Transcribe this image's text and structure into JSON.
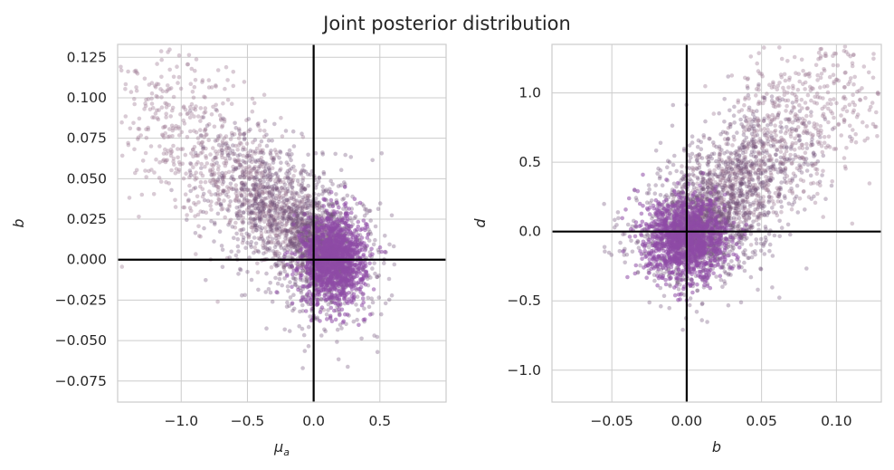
{
  "figure": {
    "title": "Joint posterior distribution",
    "colors": {
      "scatter_light": "#a07c95",
      "scatter_mid": "#6f4f78",
      "scatter_core": "#8e4aa6",
      "grid": "#cccccc",
      "reference_line": "#000000"
    }
  },
  "chart_data": [
    {
      "type": "scatter",
      "xlabel": "μ",
      "xlabel_subscript": "a",
      "ylabel": "b",
      "xlim": [
        -1.48,
        1.0
      ],
      "ylim": [
        -0.088,
        0.133
      ],
      "xticks": [
        -1.0,
        -0.5,
        0.0,
        0.5
      ],
      "xtick_labels": [
        "−1.0",
        "−0.5",
        "0.0",
        "0.5"
      ],
      "yticks": [
        -0.075,
        -0.05,
        -0.025,
        0.0,
        0.025,
        0.05,
        0.075,
        0.1,
        0.125
      ],
      "ytick_labels": [
        "−0.075",
        "−0.050",
        "−0.025",
        "0.000",
        "0.025",
        "0.050",
        "0.075",
        "0.100",
        "0.125"
      ],
      "reference_lines": {
        "x": 0.0,
        "y": 0.0
      },
      "grid": true,
      "cloud": {
        "core_center": [
          0.15,
          0.0
        ],
        "core_spread": [
          0.14,
          0.016
        ],
        "tail_direction": "upper-left",
        "tail_end": [
          -1.3,
          0.1
        ],
        "correlation": "negative"
      }
    },
    {
      "type": "scatter",
      "xlabel": "b",
      "ylabel": "d",
      "xlim": [
        -0.09,
        0.13
      ],
      "ylim": [
        -1.23,
        1.35
      ],
      "xticks": [
        -0.05,
        0.0,
        0.05,
        0.1
      ],
      "xtick_labels": [
        "−0.05",
        "0.00",
        "0.05",
        "0.10"
      ],
      "yticks": [
        -1.0,
        -0.5,
        0.0,
        0.5,
        1.0
      ],
      "ytick_labels": [
        "−1.0",
        "−0.5",
        "0.0",
        "0.5",
        "1.0"
      ],
      "reference_lines": {
        "x": 0.0,
        "y": 0.0
      },
      "grid": true,
      "cloud": {
        "core_center": [
          0.0,
          -0.05
        ],
        "core_spread": [
          0.016,
          0.17
        ],
        "tail_direction": "upper-right",
        "tail_end": [
          0.11,
          1.2
        ],
        "correlation": "positive"
      }
    }
  ]
}
